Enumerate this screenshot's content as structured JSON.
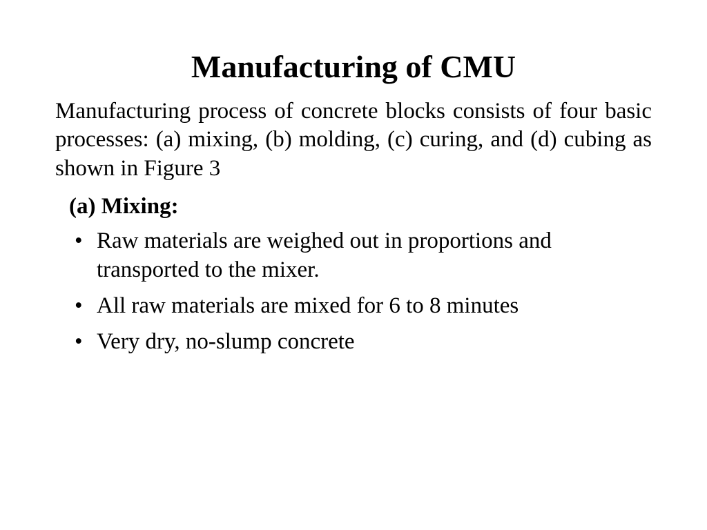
{
  "slide": {
    "title": "Manufacturing of CMU",
    "intro": "Manufacturing process of concrete blocks consists of four basic processes: (a) mixing, (b) molding, (c) curing, and (d) cubing as shown in Figure 3",
    "subheading": "(a) Mixing:",
    "bullets": [
      "Raw materials are weighed out in proportions and transported to the mixer.",
      "All raw materials are mixed for 6 to 8 minutes",
      "Very dry, no-slump concrete"
    ]
  },
  "style": {
    "background_color": "#ffffff",
    "text_color": "#000000",
    "font_family": "Times New Roman",
    "title_fontsize": 46,
    "body_fontsize": 33,
    "title_weight": "bold",
    "subheading_weight": "bold"
  }
}
